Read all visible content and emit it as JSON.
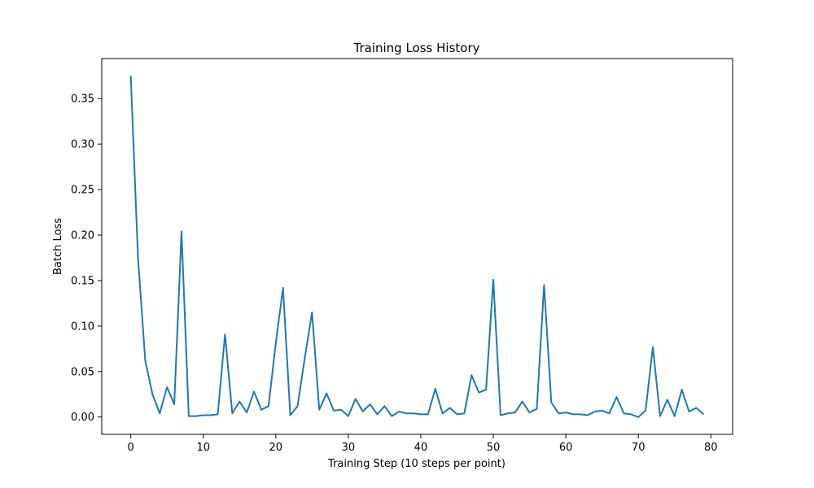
{
  "chart_data": {
    "type": "line",
    "title": "Training Loss History",
    "xlabel": "Training Step (10 steps per point)",
    "ylabel": "Batch Loss",
    "xlim": [
      -4,
      83
    ],
    "ylim": [
      -0.019,
      0.394
    ],
    "xticks": [
      0,
      10,
      20,
      30,
      40,
      50,
      60,
      70,
      80
    ],
    "yticks": [
      0.0,
      0.05,
      0.1,
      0.15,
      0.2,
      0.25,
      0.3,
      0.35
    ],
    "ytick_labels": [
      "0.00",
      "0.05",
      "0.10",
      "0.15",
      "0.20",
      "0.25",
      "0.30",
      "0.35"
    ],
    "grid": false,
    "color": "#1f77b4",
    "series": [
      {
        "x": [
          0,
          1,
          2,
          3,
          4,
          5,
          6,
          7,
          8,
          9,
          10,
          11,
          12,
          13,
          14,
          15,
          16,
          17,
          18,
          19,
          20,
          21,
          22,
          23,
          24,
          25,
          26,
          27,
          28,
          29,
          30,
          31,
          32,
          33,
          34,
          35,
          36,
          37,
          38,
          39,
          40,
          41,
          42,
          43,
          44,
          45,
          46,
          47,
          48,
          49,
          50,
          51,
          52,
          53,
          54,
          55,
          56,
          57,
          58,
          59,
          60,
          61,
          62,
          63,
          64,
          65,
          66,
          67,
          68,
          69,
          70,
          71,
          72,
          73,
          74,
          75,
          76,
          77,
          78,
          79
        ],
        "values": [
          0.375,
          0.175,
          0.062,
          0.025,
          0.004,
          0.033,
          0.014,
          0.204,
          0.001,
          0.001,
          0.002,
          0.002,
          0.003,
          0.091,
          0.004,
          0.017,
          0.005,
          0.028,
          0.008,
          0.012,
          0.081,
          0.142,
          0.002,
          0.012,
          0.065,
          0.115,
          0.008,
          0.026,
          0.007,
          0.008,
          0.001,
          0.02,
          0.006,
          0.014,
          0.003,
          0.012,
          0.001,
          0.006,
          0.004,
          0.004,
          0.003,
          0.003,
          0.031,
          0.004,
          0.01,
          0.003,
          0.004,
          0.046,
          0.027,
          0.03,
          0.151,
          0.002,
          0.004,
          0.005,
          0.017,
          0.005,
          0.009,
          0.145,
          0.016,
          0.004,
          0.005,
          0.003,
          0.003,
          0.002,
          0.006,
          0.007,
          0.004,
          0.022,
          0.004,
          0.003,
          0.0,
          0.007,
          0.077,
          0.001,
          0.019,
          0.001,
          0.03,
          0.006,
          0.01,
          0.003
        ]
      }
    ]
  }
}
